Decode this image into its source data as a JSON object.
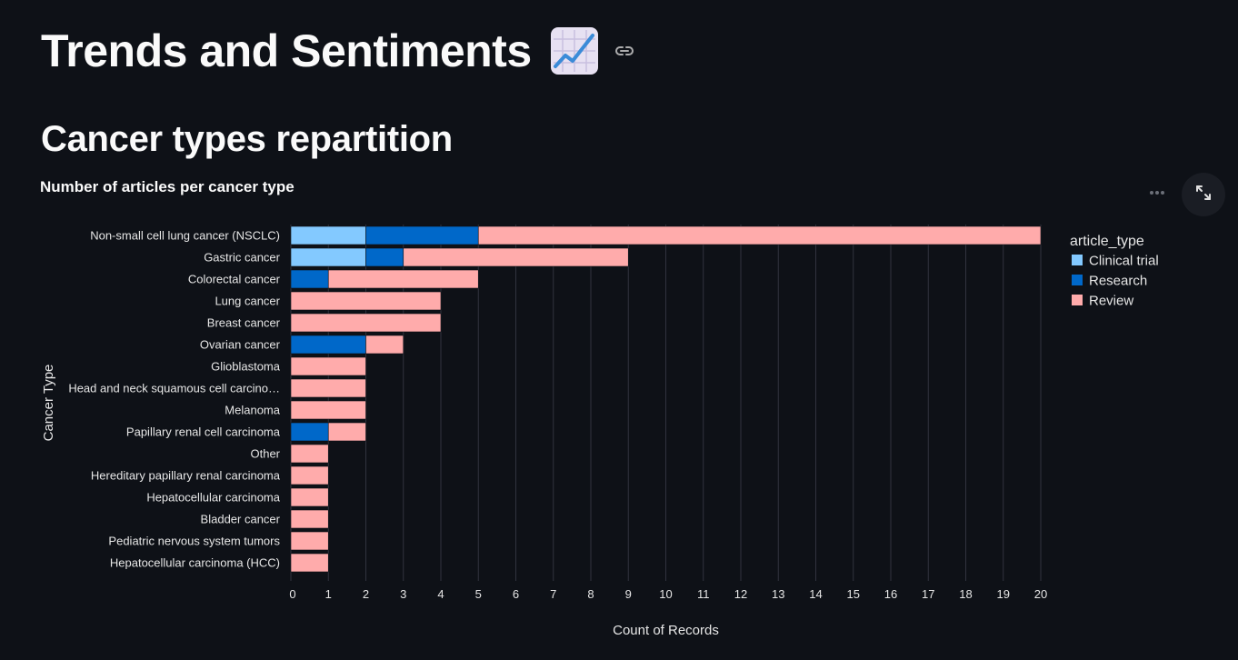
{
  "page": {
    "title": "Trends and Sentiments",
    "title_icon": "chart-increasing-emoji",
    "link_icon": "link-icon"
  },
  "section": {
    "heading": "Cancer types repartition"
  },
  "chart_toolbar": {
    "more_icon": "more-horizontal-icon",
    "expand_icon": "expand-icon"
  },
  "chart_data": {
    "type": "bar",
    "orientation": "horizontal",
    "stacked": true,
    "title": "Number of articles per cancer type",
    "xlabel": "Count of Records",
    "ylabel": "Cancer Type",
    "xlim": [
      0,
      20
    ],
    "xticks": [
      0,
      1,
      2,
      3,
      4,
      5,
      6,
      7,
      8,
      9,
      10,
      11,
      12,
      13,
      14,
      15,
      16,
      17,
      18,
      19,
      20
    ],
    "grid": true,
    "legend_title": "article_type",
    "legend_position": "right",
    "categories": [
      "Non-small cell lung cancer (NSCLC)",
      "Gastric cancer",
      "Colorectal cancer",
      "Lung cancer",
      "Breast cancer",
      "Ovarian cancer",
      "Glioblastoma",
      "Head and neck squamous cell carcino…",
      "Melanoma",
      "Papillary renal cell carcinoma",
      "Other",
      "Hereditary papillary renal carcinoma",
      "Hepatocellular carcinoma",
      "Bladder cancer",
      "Pediatric nervous system tumors",
      "Hepatocellular carcinoma (HCC)"
    ],
    "series": [
      {
        "name": "Clinical trial",
        "color": "#83c9ff",
        "values": [
          2,
          2,
          0,
          0,
          0,
          0,
          0,
          0,
          0,
          0,
          0,
          0,
          0,
          0,
          0,
          0
        ]
      },
      {
        "name": "Research",
        "color": "#0068c9",
        "values": [
          3,
          1,
          1,
          0,
          0,
          2,
          0,
          0,
          0,
          1,
          0,
          0,
          0,
          0,
          0,
          0
        ]
      },
      {
        "name": "Review",
        "color": "#ffabab",
        "values": [
          15,
          6,
          4,
          4,
          4,
          1,
          2,
          2,
          2,
          1,
          1,
          1,
          1,
          1,
          1,
          1
        ]
      }
    ]
  }
}
